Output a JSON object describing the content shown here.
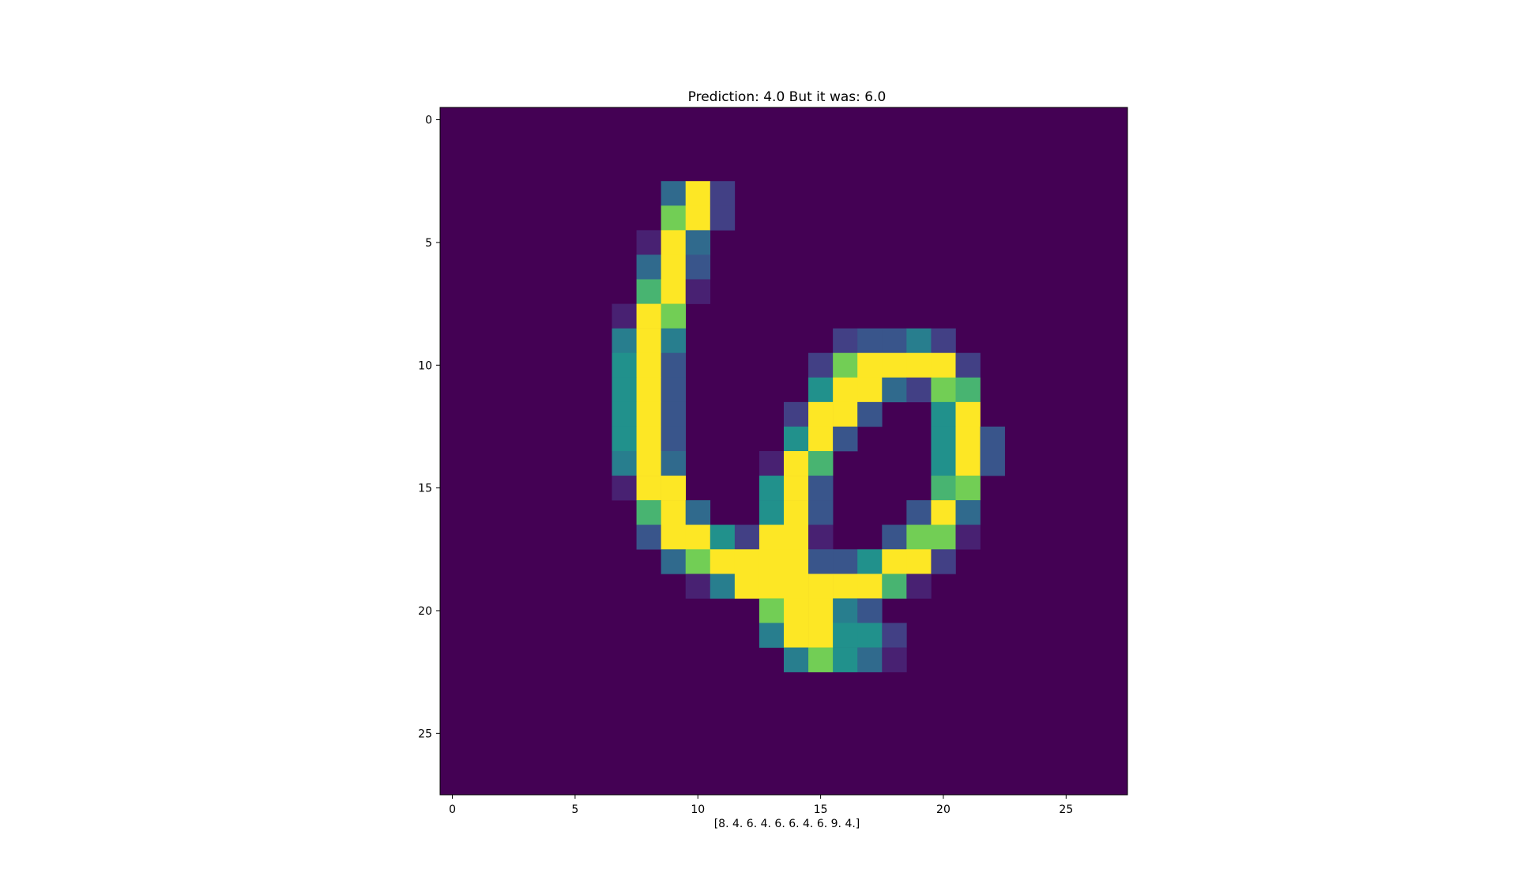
{
  "chart_data": {
    "type": "heatmap",
    "title": "Prediction: 4.0 But it was: 6.0",
    "xlabel": "[8. 4. 6. 4. 6. 6. 4. 6. 9. 4.]",
    "ylabel": "",
    "xlim": [
      -0.5,
      27.5
    ],
    "ylim": [
      27.5,
      -0.5
    ],
    "x_ticks": [
      0,
      5,
      10,
      15,
      20,
      25
    ],
    "y_ticks": [
      0,
      5,
      10,
      15,
      20,
      25
    ],
    "x_tick_labels": [
      "0",
      "5",
      "10",
      "15",
      "20",
      "25"
    ],
    "y_tick_labels": [
      "0",
      "5",
      "10",
      "15",
      "20",
      "25"
    ],
    "colormap": "viridis",
    "value_range": [
      0,
      255
    ],
    "grid": false,
    "rows": 28,
    "cols": 28,
    "pixels": [
      [
        3,
        9,
        110
      ],
      [
        3,
        10,
        255
      ],
      [
        3,
        11,
        60
      ],
      [
        4,
        9,
        200
      ],
      [
        4,
        10,
        255
      ],
      [
        4,
        11,
        60
      ],
      [
        5,
        8,
        30
      ],
      [
        5,
        9,
        255
      ],
      [
        5,
        10,
        110
      ],
      [
        6,
        8,
        110
      ],
      [
        6,
        9,
        255
      ],
      [
        6,
        10,
        85
      ],
      [
        7,
        8,
        180
      ],
      [
        7,
        9,
        255
      ],
      [
        7,
        10,
        30
      ],
      [
        8,
        7,
        30
      ],
      [
        8,
        8,
        255
      ],
      [
        8,
        9,
        200
      ],
      [
        9,
        7,
        135
      ],
      [
        9,
        8,
        255
      ],
      [
        9,
        9,
        135
      ],
      [
        9,
        16,
        60
      ],
      [
        9,
        17,
        85
      ],
      [
        9,
        18,
        85
      ],
      [
        9,
        19,
        135
      ],
      [
        9,
        20,
        60
      ],
      [
        10,
        7,
        160
      ],
      [
        10,
        8,
        255
      ],
      [
        10,
        9,
        85
      ],
      [
        10,
        15,
        60
      ],
      [
        10,
        16,
        200
      ],
      [
        10,
        17,
        255
      ],
      [
        10,
        18,
        255
      ],
      [
        10,
        19,
        255
      ],
      [
        10,
        20,
        255
      ],
      [
        10,
        21,
        60
      ],
      [
        11,
        7,
        160
      ],
      [
        11,
        8,
        255
      ],
      [
        11,
        9,
        85
      ],
      [
        11,
        15,
        160
      ],
      [
        11,
        16,
        255
      ],
      [
        11,
        17,
        255
      ],
      [
        11,
        18,
        110
      ],
      [
        11,
        19,
        60
      ],
      [
        11,
        20,
        200
      ],
      [
        11,
        21,
        180
      ],
      [
        12,
        7,
        160
      ],
      [
        12,
        8,
        255
      ],
      [
        12,
        9,
        85
      ],
      [
        12,
        14,
        60
      ],
      [
        12,
        15,
        255
      ],
      [
        12,
        16,
        255
      ],
      [
        12,
        17,
        85
      ],
      [
        12,
        20,
        160
      ],
      [
        12,
        21,
        255
      ],
      [
        13,
        7,
        160
      ],
      [
        13,
        8,
        255
      ],
      [
        13,
        9,
        85
      ],
      [
        13,
        14,
        160
      ],
      [
        13,
        15,
        255
      ],
      [
        13,
        16,
        85
      ],
      [
        13,
        20,
        160
      ],
      [
        13,
        21,
        255
      ],
      [
        13,
        22,
        85
      ],
      [
        14,
        7,
        135
      ],
      [
        14,
        8,
        255
      ],
      [
        14,
        9,
        110
      ],
      [
        14,
        13,
        30
      ],
      [
        14,
        14,
        255
      ],
      [
        14,
        15,
        180
      ],
      [
        14,
        20,
        160
      ],
      [
        14,
        21,
        255
      ],
      [
        14,
        22,
        85
      ],
      [
        15,
        7,
        30
      ],
      [
        15,
        8,
        255
      ],
      [
        15,
        9,
        255
      ],
      [
        15,
        13,
        160
      ],
      [
        15,
        14,
        255
      ],
      [
        15,
        15,
        85
      ],
      [
        15,
        20,
        180
      ],
      [
        15,
        21,
        200
      ],
      [
        16,
        8,
        180
      ],
      [
        16,
        9,
        255
      ],
      [
        16,
        10,
        110
      ],
      [
        16,
        13,
        160
      ],
      [
        16,
        14,
        255
      ],
      [
        16,
        15,
        85
      ],
      [
        16,
        19,
        85
      ],
      [
        16,
        20,
        255
      ],
      [
        16,
        21,
        110
      ],
      [
        17,
        8,
        85
      ],
      [
        17,
        9,
        255
      ],
      [
        17,
        10,
        255
      ],
      [
        17,
        11,
        160
      ],
      [
        17,
        12,
        60
      ],
      [
        17,
        13,
        255
      ],
      [
        17,
        14,
        255
      ],
      [
        17,
        15,
        30
      ],
      [
        17,
        18,
        85
      ],
      [
        17,
        19,
        200
      ],
      [
        17,
        20,
        200
      ],
      [
        17,
        21,
        30
      ],
      [
        18,
        9,
        110
      ],
      [
        18,
        10,
        200
      ],
      [
        18,
        11,
        255
      ],
      [
        18,
        12,
        255
      ],
      [
        18,
        13,
        255
      ],
      [
        18,
        14,
        255
      ],
      [
        18,
        15,
        85
      ],
      [
        18,
        16,
        85
      ],
      [
        18,
        17,
        160
      ],
      [
        18,
        18,
        255
      ],
      [
        18,
        19,
        255
      ],
      [
        18,
        20,
        60
      ],
      [
        19,
        10,
        30
      ],
      [
        19,
        11,
        135
      ],
      [
        19,
        12,
        255
      ],
      [
        19,
        13,
        255
      ],
      [
        19,
        14,
        255
      ],
      [
        19,
        15,
        255
      ],
      [
        19,
        16,
        255
      ],
      [
        19,
        17,
        255
      ],
      [
        19,
        18,
        180
      ],
      [
        19,
        19,
        30
      ],
      [
        20,
        13,
        200
      ],
      [
        20,
        14,
        255
      ],
      [
        20,
        15,
        255
      ],
      [
        20,
        16,
        135
      ],
      [
        20,
        17,
        85
      ],
      [
        21,
        13,
        135
      ],
      [
        21,
        14,
        255
      ],
      [
        21,
        15,
        255
      ],
      [
        21,
        16,
        160
      ],
      [
        21,
        17,
        160
      ],
      [
        21,
        18,
        60
      ],
      [
        22,
        14,
        135
      ],
      [
        22,
        15,
        200
      ],
      [
        22,
        16,
        160
      ],
      [
        22,
        17,
        110
      ],
      [
        22,
        18,
        30
      ]
    ]
  }
}
